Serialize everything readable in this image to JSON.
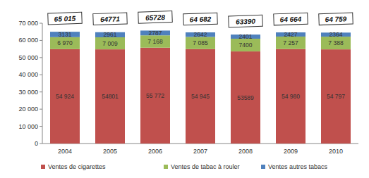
{
  "chart_data": {
    "type": "bar",
    "stacked": true,
    "data_labels": true,
    "grid": false,
    "legend": "bottom",
    "categories": [
      "2004",
      "2005",
      "2006",
      "2007",
      "2008",
      "2009",
      "2010"
    ],
    "series": [
      {
        "name": "Ventes de cigarettes",
        "color": "#c0504d",
        "values": [
          54924,
          54801,
          55772,
          54945,
          53589,
          54980,
          54797
        ],
        "value_labels": [
          "54 924",
          "54801",
          "55 772",
          "54 945",
          "53589",
          "54 980",
          "54 797"
        ]
      },
      {
        "name": "Ventes de tabac à rouler",
        "color": "#9bbb59",
        "values": [
          6970,
          7009,
          7168,
          7085,
          7400,
          7257,
          7388
        ],
        "value_labels": [
          "6 970",
          "7 009",
          "7 168",
          "7 085",
          "7400",
          "7 257",
          "7 388"
        ]
      },
      {
        "name": "Ventes autres tabacs",
        "color": "#4f81bd",
        "values": [
          3131,
          2961,
          2787,
          2642,
          2401,
          2427,
          2364
        ],
        "value_labels": [
          "3131",
          "2961",
          "2787",
          "2642",
          "2401",
          "2427",
          "2364"
        ]
      }
    ],
    "totals": {
      "values": [
        65015,
        64771,
        65728,
        64682,
        63390,
        64664,
        64759
      ],
      "value_labels": [
        "65 015",
        "64771",
        "65728",
        "64 682",
        "63390",
        "64 664",
        "64 759"
      ]
    },
    "ylim": [
      0,
      70000
    ],
    "yticks": [
      {
        "value": 0,
        "label": "0"
      },
      {
        "value": 10000,
        "label": "10 000"
      },
      {
        "value": 20000,
        "label": "20 000"
      },
      {
        "value": 30000,
        "label": "30 000"
      },
      {
        "value": 40000,
        "label": "40 000"
      },
      {
        "value": 50000,
        "label": "50 000"
      },
      {
        "value": 60000,
        "label": "60 000"
      },
      {
        "value": 70000,
        "label": "70 000"
      }
    ]
  }
}
